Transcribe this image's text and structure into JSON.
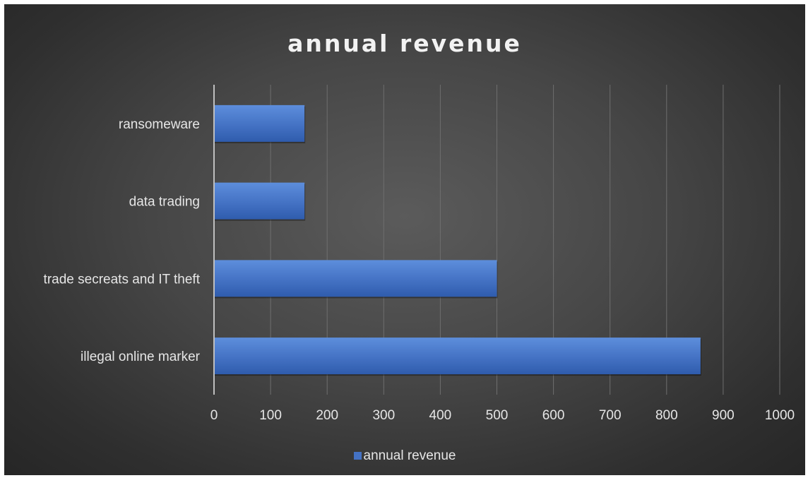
{
  "chart_data": {
    "type": "bar",
    "orientation": "horizontal",
    "title": "annual revenue",
    "categories": [
      "ransomeware",
      "data trading",
      "trade secreats and IT theft",
      "illegal online marker"
    ],
    "series": [
      {
        "name": "annual revenue",
        "values": [
          160,
          160,
          500,
          860
        ],
        "color": "#4472c4"
      }
    ],
    "xlim": [
      0,
      1000
    ],
    "xticks": [
      0,
      100,
      200,
      300,
      400,
      500,
      600,
      700,
      800,
      900,
      1000
    ],
    "grid": "vertical",
    "legend_position": "bottom"
  },
  "legend": {
    "label": "annual revenue"
  },
  "colors": {
    "bar": "#4472c4",
    "bar_light": "#5b8bd9",
    "bar_dark": "#2f5cad",
    "text": "#e6e6e6",
    "grid": "#6e6e6e"
  }
}
